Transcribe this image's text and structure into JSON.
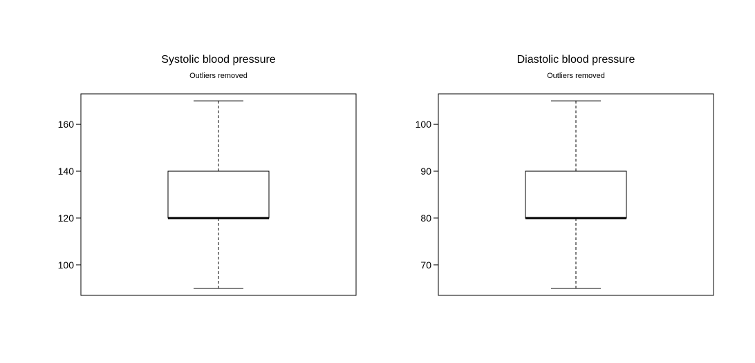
{
  "chart_data": [
    {
      "type": "boxplot",
      "title": "Systolic blood pressure",
      "subtitle": "Outliers removed",
      "xlabel": "",
      "ylabel": "",
      "ylim": [
        87,
        173
      ],
      "yticks": [
        100,
        120,
        140,
        160
      ],
      "ytick_labels": [
        "100",
        "120",
        "140",
        "160"
      ],
      "box": {
        "min": 90,
        "q1": 120,
        "median": 120,
        "q3": 140,
        "max": 170
      },
      "grid": false,
      "legend": "none"
    },
    {
      "type": "boxplot",
      "title": "Diastolic blood pressure",
      "subtitle": "Outliers removed",
      "xlabel": "",
      "ylabel": "",
      "ylim": [
        63.5,
        106.5
      ],
      "yticks": [
        70,
        80,
        90,
        100
      ],
      "ytick_labels": [
        "70",
        "80",
        "90",
        "100"
      ],
      "box": {
        "min": 65,
        "q1": 80,
        "median": 80,
        "q3": 90,
        "max": 105
      },
      "grid": false,
      "legend": "none"
    }
  ]
}
